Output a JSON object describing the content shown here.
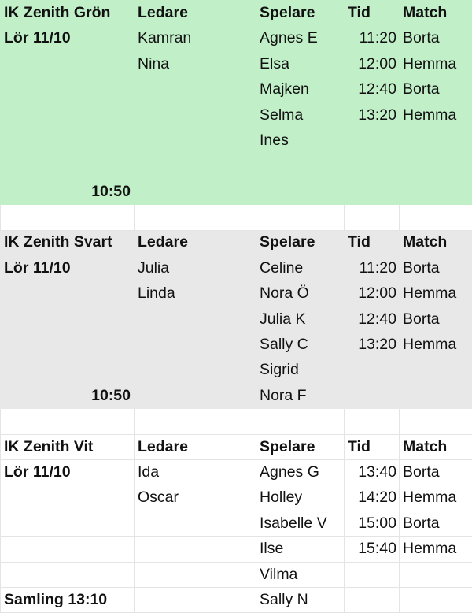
{
  "colors": {
    "green_block": "#c1efc8",
    "gray_block": "#e8e8e8",
    "gridline": "#e4e4e4"
  },
  "blocks": [
    {
      "fill": "green",
      "rows": [
        [
          "IK Zenith Grön",
          "Ledare",
          "Spelare",
          "Tid",
          "Match"
        ],
        [
          "Lör 11/10",
          "Kamran",
          "Agnes E",
          "11:20",
          "Borta"
        ],
        [
          "",
          "Nina",
          "Elsa",
          "12:00",
          "Hemma"
        ],
        [
          "",
          "",
          "Majken",
          "12:40",
          "Borta"
        ],
        [
          "",
          "",
          "Selma",
          "13:20",
          "Hemma"
        ],
        [
          "",
          "",
          "Ines",
          "",
          ""
        ],
        [
          "",
          "",
          "",
          "",
          ""
        ],
        [
          "10:50",
          "",
          "",
          "",
          ""
        ]
      ]
    },
    {
      "fill": "none",
      "rows": [
        [
          "",
          "",
          "",
          "",
          ""
        ]
      ]
    },
    {
      "fill": "gray",
      "rows": [
        [
          "IK Zenith Svart",
          "Ledare",
          "Spelare",
          "Tid",
          "Match"
        ],
        [
          "Lör 11/10",
          "Julia",
          "Celine",
          "11:20",
          "Borta"
        ],
        [
          "",
          "Linda",
          "Nora Ö",
          "12:00",
          "Hemma"
        ],
        [
          "",
          "",
          "Julia K",
          "12:40",
          "Borta"
        ],
        [
          "",
          "",
          "Sally C",
          "13:20",
          "Hemma"
        ],
        [
          "",
          "",
          "Sigrid",
          "",
          ""
        ],
        [
          "10:50",
          "",
          "Nora F",
          "",
          ""
        ]
      ]
    },
    {
      "fill": "none",
      "rows": [
        [
          "",
          "",
          "",
          "",
          ""
        ]
      ]
    },
    {
      "fill": "none",
      "rows": [
        [
          "IK Zenith Vit",
          "Ledare",
          "Spelare",
          "Tid",
          "Match"
        ],
        [
          "Lör 11/10",
          "Ida",
          "Agnes G",
          "13:40",
          "Borta"
        ],
        [
          "",
          "Oscar",
          "Holley",
          "14:20",
          "Hemma"
        ],
        [
          "",
          "",
          "Isabelle V",
          "15:00",
          "Borta"
        ],
        [
          "",
          "",
          "Ilse",
          "15:40",
          "Hemma"
        ],
        [
          "",
          "",
          "Vilma",
          "",
          ""
        ],
        [
          "Samling 13:10",
          "",
          "Sally N",
          "",
          ""
        ]
      ]
    }
  ]
}
